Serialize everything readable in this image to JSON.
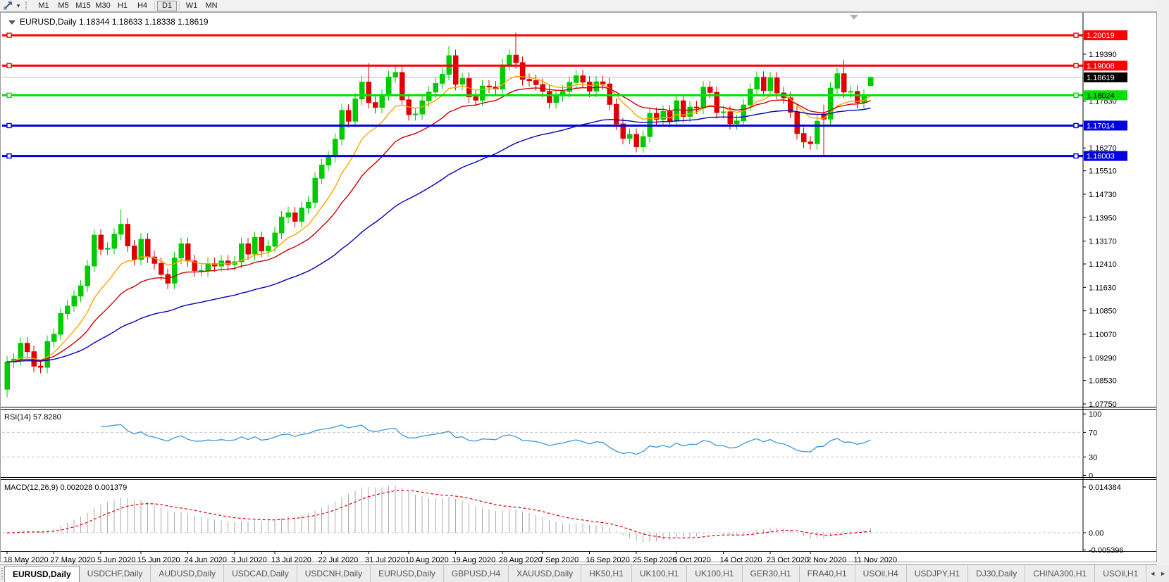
{
  "toolbar": {
    "timeframes": [
      "M1",
      "M5",
      "M15",
      "M30",
      "H1",
      "H4",
      "D1",
      "W1",
      "MN"
    ],
    "active_timeframe": "D1"
  },
  "chart": {
    "title": {
      "symbol_period": "EURUSD,Daily",
      "ohlc": "1.18344 1.18633 1.18338 1.18619"
    },
    "colors": {
      "up_candle": "#00CB00",
      "down_candle": "#E00000",
      "ma_fast": "#FFA500",
      "ma_mid": "#CC0000",
      "ma_slow": "#0000BB",
      "rsi_line": "#3C96DC",
      "macd_hist": "#ABABAB",
      "macd_signal": "#E00000",
      "bid_line": "#BEBEBE",
      "level_dash": "#C8C8C8"
    },
    "price_axis_ticks": [
      {
        "label": "1.19390",
        "value": 1.1939
      },
      {
        "label": "1.17830",
        "value": 1.1783
      },
      {
        "label": "1.16270",
        "value": 1.1627
      },
      {
        "label": "1.15510",
        "value": 1.1551
      },
      {
        "label": "1.14730",
        "value": 1.1473
      },
      {
        "label": "1.13950",
        "value": 1.1395
      },
      {
        "label": "1.13170",
        "value": 1.1317
      },
      {
        "label": "1.12410",
        "value": 1.1241
      },
      {
        "label": "1.11630",
        "value": 1.1163
      },
      {
        "label": "1.10850",
        "value": 1.1085
      },
      {
        "label": "1.10070",
        "value": 1.1007
      },
      {
        "label": "1.09290",
        "value": 1.0929
      },
      {
        "label": "1.08530",
        "value": 1.0853
      },
      {
        "label": "1.07750",
        "value": 1.0775
      }
    ],
    "horizontal_lines": [
      {
        "price": 1.20019,
        "label": "1.20019",
        "color": "#FF0000",
        "text_color": "#FFFFFF"
      },
      {
        "price": 1.19008,
        "label": "1.19008",
        "color": "#FF0000",
        "text_color": "#FFFFFF"
      },
      {
        "price": 1.18024,
        "label": "1.18024",
        "color": "#00E000",
        "text_color": "#000000"
      },
      {
        "price": 1.17014,
        "label": "1.17014",
        "color": "#0000E0",
        "text_color": "#FFFFFF"
      },
      {
        "price": 1.16003,
        "label": "1.16003",
        "color": "#0000E0",
        "text_color": "#FFFFFF"
      }
    ],
    "bid": {
      "price": 1.18619,
      "label": "1.18619"
    }
  },
  "indicators": {
    "rsi": {
      "label": "RSI(14) 57.8280",
      "period": 14,
      "current": "57.8280",
      "axis_labels": [
        {
          "text": "100",
          "value": 100
        },
        {
          "text": "70",
          "value": 70
        },
        {
          "text": "30",
          "value": 30
        },
        {
          "text": "0",
          "value": 0
        }
      ],
      "dashed_levels": [
        70,
        30
      ]
    },
    "macd": {
      "label": "MACD(12,26,9) 0.002028 0.001379",
      "fast": 12,
      "slow": 26,
      "signal": 9,
      "current_macd": "0.002028",
      "current_signal": "0.001379",
      "axis_labels": [
        {
          "text": "0.014384",
          "value": 0.014384
        },
        {
          "text": "0.00",
          "value": 0.0
        },
        {
          "text": "-0.005396",
          "value": -0.005396
        }
      ]
    }
  },
  "chart_data": {
    "type": "candlestick",
    "symbol": "EURUSD",
    "timeframe": "Daily",
    "title": "EURUSD,Daily 1.18344 1.18633 1.18338 1.18619",
    "ylim": [
      1.0775,
      1.2075
    ],
    "grid": false,
    "x_labels": [
      {
        "label": "18 May 2020",
        "bar": 0
      },
      {
        "label": "27 May 2020",
        "bar": 7
      },
      {
        "label": "5 Jun 2020",
        "bar": 14
      },
      {
        "label": "15 Jun 2020",
        "bar": 20
      },
      {
        "label": "24 Jun 2020",
        "bar": 27
      },
      {
        "label": "3 Jul 2020",
        "bar": 34
      },
      {
        "label": "13 Jul 2020",
        "bar": 40
      },
      {
        "label": "22 Jul 2020",
        "bar": 47
      },
      {
        "label": "31 Jul 2020",
        "bar": 54
      },
      {
        "label": "10 Aug 2020",
        "bar": 60
      },
      {
        "label": "19 Aug 2020",
        "bar": 67
      },
      {
        "label": "28 Aug 2020",
        "bar": 74
      },
      {
        "label": "7 Sep 2020",
        "bar": 80
      },
      {
        "label": "16 Sep 2020",
        "bar": 87
      },
      {
        "label": "25 Sep 2020",
        "bar": 94
      },
      {
        "label": "5 Oct 2020",
        "bar": 100
      },
      {
        "label": "14 Oct 2020",
        "bar": 107
      },
      {
        "label": "23 Oct 2020",
        "bar": 114
      },
      {
        "label": "2 Nov 2020",
        "bar": 120
      },
      {
        "label": "11 Nov 2020",
        "bar": 127
      }
    ],
    "candles": {
      "first_open": 1.0824,
      "default_wick": 0.002,
      "closes": [
        1.0915,
        1.0924,
        1.0977,
        1.0949,
        1.0901,
        1.0897,
        1.0983,
        1.1007,
        1.1076,
        1.1101,
        1.1134,
        1.1168,
        1.1234,
        1.1337,
        1.129,
        1.1293,
        1.134,
        1.1373,
        1.1301,
        1.1256,
        1.1323,
        1.1264,
        1.1243,
        1.1206,
        1.1177,
        1.1261,
        1.1308,
        1.1251,
        1.1219,
        1.1219,
        1.1242,
        1.1234,
        1.1251,
        1.1239,
        1.1248,
        1.1308,
        1.1274,
        1.1329,
        1.1284,
        1.13,
        1.1344,
        1.1397,
        1.1411,
        1.1383,
        1.1427,
        1.1446,
        1.1526,
        1.157,
        1.1598,
        1.1656,
        1.1752,
        1.1716,
        1.179,
        1.1846,
        1.1778,
        1.1762,
        1.1803,
        1.1863,
        1.1878,
        1.1787,
        1.1738,
        1.174,
        1.1784,
        1.1813,
        1.1842,
        1.1872,
        1.1934,
        1.1839,
        1.1858,
        1.1797,
        1.1786,
        1.1833,
        1.183,
        1.1823,
        1.1903,
        1.1936,
        1.1911,
        1.1855,
        1.1851,
        1.1838,
        1.1815,
        1.1778,
        1.1801,
        1.1815,
        1.1845,
        1.1867,
        1.1846,
        1.1816,
        1.1847,
        1.184,
        1.1772,
        1.1707,
        1.1659,
        1.1672,
        1.1631,
        1.1665,
        1.1742,
        1.1722,
        1.1748,
        1.1716,
        1.1784,
        1.1732,
        1.1763,
        1.176,
        1.1829,
        1.1812,
        1.1745,
        1.1747,
        1.1708,
        1.1717,
        1.177,
        1.1823,
        1.1862,
        1.1818,
        1.186,
        1.181,
        1.1794,
        1.1746,
        1.1675,
        1.1647,
        1.1641,
        1.1716,
        1.1723,
        1.1826,
        1.1874,
        1.1813,
        1.1815,
        1.1778,
        1.1803,
        1.18619
      ],
      "overrides": {
        "0": {
          "o": 1.0824,
          "l": 1.0797
        },
        "17": {
          "h": 1.1422
        },
        "54": {
          "h": 1.1909
        },
        "66": {
          "h": 1.1966
        },
        "76": {
          "h": 1.2011
        },
        "94": {
          "l": 1.1612
        },
        "122": {
          "o": 1.174,
          "h": 1.1771,
          "l": 1.1603
        },
        "125": {
          "h": 1.192
        },
        "129": {
          "o": 1.18344,
          "h": 1.18633,
          "l": 1.18338,
          "c": 1.18619
        }
      }
    },
    "moving_averages": [
      {
        "period": 10,
        "color": "#FFA500",
        "name": "MA fast (orange)"
      },
      {
        "period": 20,
        "color": "#CC0000",
        "name": "MA mid (red)"
      },
      {
        "period": 50,
        "color": "#0000BB",
        "name": "MA slow (blue)"
      }
    ]
  },
  "tabs": {
    "active_index": 0,
    "items": [
      "EURUSD,Daily",
      "USDCHF,Daily",
      "AUDUSD,Daily",
      "USDCAD,Daily",
      "USDCNH,Daily",
      "EURUSD,Daily",
      "GBPUSD,H4",
      "XAUUSD,Daily",
      "HK50,H1",
      "UK100,H1",
      "UK100,H1",
      "GER30,H1",
      "FRA40,H1",
      "USOil,H4",
      "USDJPY,H1",
      "DJ30,Daily",
      "CHINA300,H1",
      "USOil,H1"
    ]
  }
}
